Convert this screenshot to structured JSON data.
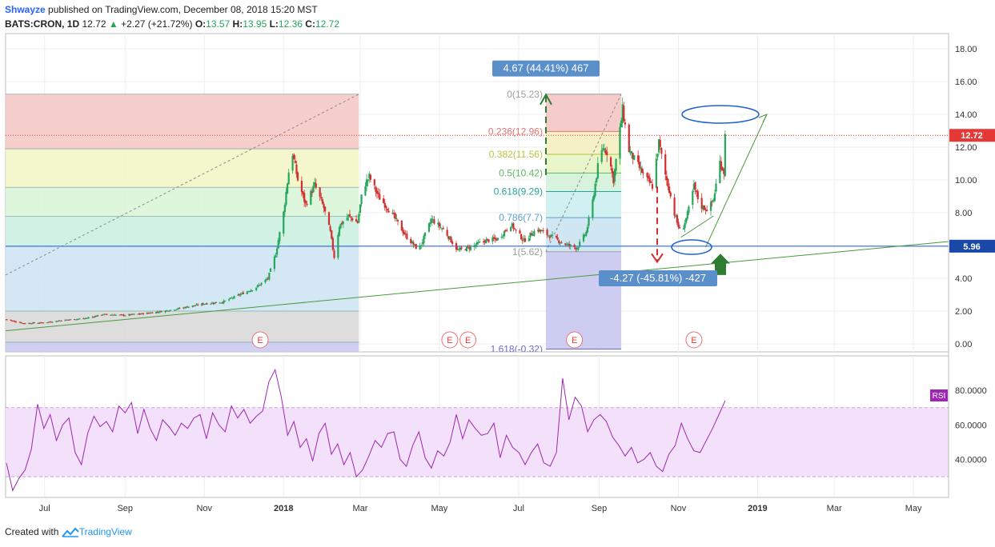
{
  "header": {
    "author": "Shwayze",
    "published": "published on TradingView.com, December 08, 2018 15:20 MST",
    "symbol": "BATS:CRON, 1D",
    "last": "12.72",
    "change": "+2.27 (+21.72%)",
    "o_label": "O:",
    "o": "13.57",
    "h_label": "H:",
    "h": "13.95",
    "l_label": "L:",
    "l": "12.36",
    "c_label": "C:",
    "c": "12.72"
  },
  "footer": {
    "created": "Created with",
    "brand": "TradingView"
  },
  "colors": {
    "up": "#26a65b",
    "down": "#d32f2f",
    "rsi": "#9c27b0",
    "rsi_band": "#f3e1fb",
    "blue_line": "#1e5fd1",
    "trend": "#4a9a3b",
    "price_tag_last": "#e53935",
    "price_tag_line": "#1848a8"
  },
  "chart_data": [
    {
      "type": "candlestick",
      "title": "",
      "ylim": [
        -0.4,
        19
      ],
      "y_ticks": [
        "18.00",
        "16.00",
        "14.00",
        "12.00",
        "10.00",
        "8.00",
        "6.00",
        "4.00",
        "2.00",
        "0.00"
      ],
      "x_ticks": [
        "Jul",
        "Sep",
        "Nov",
        "2018",
        "Mar",
        "May",
        "Jul",
        "Sep",
        "Nov",
        "2019",
        "Mar",
        "May"
      ],
      "last_price_label": "12.72",
      "horizontal_line_label": "5.96",
      "close_path": [
        [
          "2017-06-01",
          1.5
        ],
        [
          "2017-06-15",
          1.25
        ],
        [
          "2017-07-01",
          1.3
        ],
        [
          "2017-07-15",
          1.45
        ],
        [
          "2017-08-01",
          1.55
        ],
        [
          "2017-08-15",
          1.8
        ],
        [
          "2017-09-01",
          1.75
        ],
        [
          "2017-09-15",
          1.85
        ],
        [
          "2017-10-01",
          2.0
        ],
        [
          "2017-10-15",
          2.2
        ],
        [
          "2017-11-01",
          2.45
        ],
        [
          "2017-11-15",
          2.55
        ],
        [
          "2017-12-01",
          3.1
        ],
        [
          "2017-12-10",
          3.4
        ],
        [
          "2017-12-20",
          4.0
        ],
        [
          "2017-12-26",
          5.5
        ],
        [
          "2018-01-01",
          8.0
        ],
        [
          "2018-01-05",
          10.5
        ],
        [
          "2018-01-08",
          11.6
        ],
        [
          "2018-01-12",
          10.0
        ],
        [
          "2018-01-18",
          8.5
        ],
        [
          "2018-01-25",
          9.7
        ],
        [
          "2018-02-01",
          8.3
        ],
        [
          "2018-02-06",
          6.8
        ],
        [
          "2018-02-09",
          5.3
        ],
        [
          "2018-02-13",
          7.2
        ],
        [
          "2018-02-20",
          7.8
        ],
        [
          "2018-02-27",
          7.4
        ],
        [
          "2018-03-03",
          9.5
        ],
        [
          "2018-03-08",
          10.2
        ],
        [
          "2018-03-15",
          9.0
        ],
        [
          "2018-03-25",
          8.0
        ],
        [
          "2018-04-05",
          6.6
        ],
        [
          "2018-04-15",
          5.7
        ],
        [
          "2018-04-25",
          7.6
        ],
        [
          "2018-05-05",
          6.9
        ],
        [
          "2018-05-15",
          5.7
        ],
        [
          "2018-05-25",
          5.9
        ],
        [
          "2018-06-05",
          6.3
        ],
        [
          "2018-06-15",
          6.4
        ],
        [
          "2018-06-25",
          7.3
        ],
        [
          "2018-07-05",
          6.3
        ],
        [
          "2018-07-15",
          7.0
        ],
        [
          "2018-07-25",
          6.6
        ],
        [
          "2018-08-05",
          6.1
        ],
        [
          "2018-08-15",
          5.85
        ],
        [
          "2018-08-22",
          6.8
        ],
        [
          "2018-08-27",
          8.7
        ],
        [
          "2018-08-31",
          10.8
        ],
        [
          "2018-09-04",
          12.0
        ],
        [
          "2018-09-08",
          11.6
        ],
        [
          "2018-09-12",
          10.0
        ],
        [
          "2018-09-16",
          12.4
        ],
        [
          "2018-09-19",
          14.3
        ],
        [
          "2018-09-24",
          11.8
        ],
        [
          "2018-09-30",
          11.0
        ],
        [
          "2018-10-07",
          10.1
        ],
        [
          "2018-10-12",
          9.6
        ],
        [
          "2018-10-17",
          12.3
        ],
        [
          "2018-10-21",
          10.6
        ],
        [
          "2018-10-25",
          9.4
        ],
        [
          "2018-10-28",
          8.2
        ],
        [
          "2018-10-31",
          7.4
        ],
        [
          "2018-11-03",
          6.7
        ],
        [
          "2018-11-08",
          7.9
        ],
        [
          "2018-11-13",
          9.6
        ],
        [
          "2018-11-18",
          8.4
        ],
        [
          "2018-11-24",
          8.2
        ],
        [
          "2018-11-28",
          8.8
        ],
        [
          "2018-12-03",
          11.1
        ],
        [
          "2018-12-06",
          10.5
        ],
        [
          "2018-12-07",
          12.72
        ]
      ],
      "fib_left": {
        "levels": [],
        "zones": [
          "#f4c7c3",
          "#f1f6c2",
          "#d8f5d6",
          "#c9eedf",
          "#cbe4f2",
          "#d7d7d7"
        ]
      },
      "fib_right": {
        "levels": [
          {
            "label": "0(15.23)",
            "y": 15.23,
            "color": "#9e9e9e"
          },
          {
            "label": "0.236(12.96)",
            "y": 12.96,
            "color": "#e57373"
          },
          {
            "label": "0.382(11.56)",
            "y": 11.56,
            "color": "#b9c43a"
          },
          {
            "label": "0.5(10.42)",
            "y": 10.42,
            "color": "#5cb85c"
          },
          {
            "label": "0.618(9.29)",
            "y": 9.29,
            "color": "#26a69a"
          },
          {
            "label": "0.786(7.7)",
            "y": 7.7,
            "color": "#5aa0d0"
          },
          {
            "label": "1(5.62)",
            "y": 5.62,
            "color": "#9e9e9e"
          },
          {
            "label": "1.618(-0.32)",
            "y": -0.32,
            "color": "#6a6ac8"
          }
        ]
      },
      "measure_up": "4.67 (44.41%) 467",
      "measure_down": "-4.27 (-45.81%) -427",
      "earnings_label": "E"
    },
    {
      "type": "line",
      "title": "RSI",
      "ylim": [
        18,
        100
      ],
      "y_ticks": [
        "80.0000",
        "60.0000",
        "40.0000"
      ],
      "bands": [
        30,
        70
      ],
      "values": [
        38,
        22,
        29,
        34,
        46,
        72,
        58,
        66,
        51,
        60,
        64,
        44,
        37,
        55,
        65,
        59,
        62,
        56,
        71,
        67,
        73,
        55,
        69,
        58,
        51,
        63,
        59,
        54,
        61,
        58,
        64,
        66,
        52,
        67,
        60,
        56,
        71,
        64,
        69,
        61,
        65,
        68,
        85,
        92,
        76,
        54,
        62,
        47,
        52,
        39,
        55,
        61,
        43,
        49,
        37,
        44,
        30,
        34,
        42,
        51,
        47,
        55,
        56,
        40,
        36,
        48,
        56,
        41,
        35,
        45,
        42,
        50,
        66,
        52,
        63,
        58,
        54,
        55,
        61,
        41,
        54,
        47,
        44,
        37,
        44,
        49,
        38,
        36,
        44,
        87,
        63,
        76,
        71,
        56,
        63,
        66,
        62,
        53,
        48,
        42,
        47,
        38,
        40,
        44,
        36,
        33,
        43,
        48,
        61,
        52,
        45,
        44,
        51,
        58,
        66,
        74
      ]
    }
  ]
}
